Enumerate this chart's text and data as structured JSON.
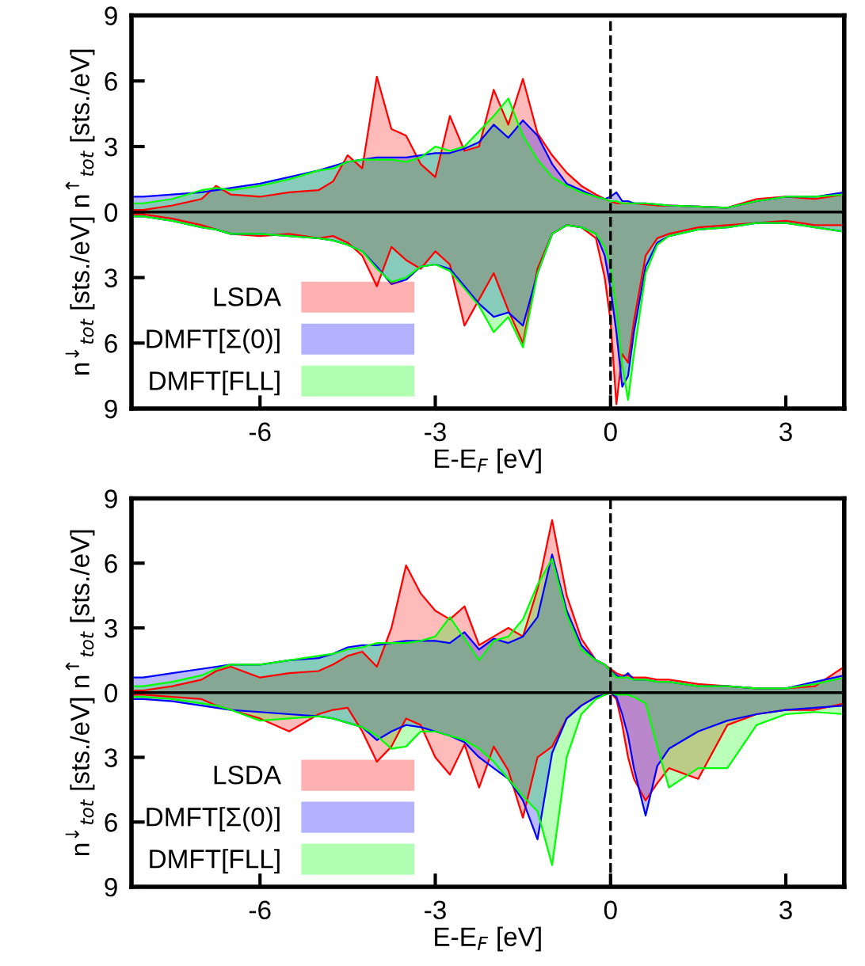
{
  "chart_data": [
    {
      "type": "area",
      "xlabel": "E-E$_{F}$ [eV]",
      "ylabel": "n$^{↓}$$_{tot}$ [sts./eV] n$^{↑}$$_{tot}$ [sts./eV]",
      "x": [
        -8.2,
        -8,
        -7.5,
        -7,
        -6.75,
        -6.5,
        -6,
        -5.5,
        -5,
        -4.75,
        -4.5,
        -4.25,
        -4,
        -3.75,
        -3.5,
        -3.25,
        -3,
        -2.75,
        -2.5,
        -2.25,
        -2,
        -1.75,
        -1.5,
        -1.25,
        -1,
        -0.75,
        -0.5,
        -0.25,
        -0.1,
        0,
        0.1,
        0.2,
        0.3,
        0.4,
        0.6,
        0.8,
        1,
        1.5,
        2,
        2.5,
        3,
        3.5,
        4
      ],
      "xlim": [
        -8.2,
        4
      ],
      "xticks": [
        -6,
        -3,
        0,
        3
      ],
      "ylim": [
        -9,
        9
      ],
      "yticks": [
        {
          "value": -9,
          "label": "9"
        },
        {
          "value": -6,
          "label": "6"
        },
        {
          "value": -3,
          "label": "3"
        },
        0,
        3,
        6,
        9
      ],
      "grid": false,
      "legend": "bottom left",
      "ref_lines": [
        {
          "axis": "y",
          "value": 0,
          "color": "#000000",
          "line_style": "solid"
        },
        {
          "axis": "x",
          "value": 0,
          "color": "#000000",
          "line_style": "dashed"
        }
      ],
      "series": [
        {
          "name": "LSDA",
          "color": "#ff0000",
          "values": [
            0.1,
            0.1,
            0.3,
            0.6,
            1.2,
            0.8,
            0.7,
            0.9,
            1.0,
            1.4,
            2.6,
            2.0,
            6.2,
            3.8,
            3.5,
            2.2,
            1.6,
            4.4,
            2.8,
            3.0,
            5.6,
            4.0,
            6.1,
            3.6,
            2.6,
            1.8,
            1.2,
            0.8,
            0.6,
            0.5,
            0.4,
            0.4,
            0.4,
            0.4,
            0.35,
            0.3,
            0.3,
            0.25,
            0.2,
            0.6,
            0.7,
            0.6,
            0.8
          ]
        },
        {
          "name": "DMFT[Σ(0)]",
          "color": "#0000ff",
          "values": [
            0.7,
            0.7,
            0.8,
            0.9,
            1.0,
            1.1,
            1.3,
            1.6,
            1.9,
            2.1,
            2.3,
            2.4,
            2.5,
            2.5,
            2.5,
            2.6,
            2.7,
            2.7,
            2.9,
            3.2,
            4.0,
            3.4,
            4.2,
            3.5,
            2.2,
            1.3,
            1.0,
            0.7,
            0.6,
            0.7,
            0.9,
            0.5,
            0.5,
            0.4,
            0.4,
            0.35,
            0.3,
            0.25,
            0.2,
            0.5,
            0.7,
            0.7,
            0.9
          ]
        },
        {
          "name": "DMFT[FLL]",
          "color": "#00ff00",
          "values": [
            0.4,
            0.4,
            0.6,
            1.0,
            1.1,
            1.0,
            1.2,
            1.5,
            1.9,
            2.0,
            2.3,
            2.4,
            2.4,
            2.4,
            2.3,
            2.5,
            3.0,
            2.8,
            3.0,
            3.7,
            4.4,
            5.2,
            3.5,
            2.4,
            1.6,
            1.2,
            0.9,
            0.7,
            0.6,
            0.5,
            0.5,
            0.4,
            0.4,
            0.4,
            0.4,
            0.35,
            0.3,
            0.25,
            0.2,
            0.5,
            0.7,
            0.7,
            0.8
          ]
        },
        {
          "color": "#ff0000",
          "values": [
            -0.1,
            -0.1,
            -0.3,
            -0.6,
            -0.8,
            -1.0,
            -1.1,
            -1.0,
            -1.2,
            -1.1,
            -1.4,
            -2.0,
            -3.4,
            -1.6,
            -2.2,
            -2.6,
            -1.8,
            -2.4,
            -5.2,
            -4.0,
            -2.8,
            -4.5,
            -6.0,
            -2.6,
            -1.0,
            -0.6,
            -0.7,
            -1.2,
            -3.0,
            -5.0,
            -8.8,
            -6.5,
            -6.9,
            -5.0,
            -2.0,
            -1.2,
            -1.0,
            -0.7,
            -0.6,
            -0.5,
            -0.4,
            -0.6,
            -0.6
          ]
        },
        {
          "color": "#0000ff",
          "values": [
            -0.2,
            -0.2,
            -0.4,
            -0.7,
            -0.8,
            -1.0,
            -1.0,
            -1.1,
            -1.2,
            -1.3,
            -1.5,
            -1.8,
            -2.5,
            -3.3,
            -3.1,
            -2.5,
            -2.4,
            -2.6,
            -3.4,
            -4.2,
            -4.8,
            -4.6,
            -5.2,
            -2.8,
            -1.0,
            -0.6,
            -0.7,
            -1.0,
            -2.0,
            -3.5,
            -5.5,
            -8.0,
            -7.5,
            -5.5,
            -2.5,
            -1.4,
            -1.1,
            -0.8,
            -0.7,
            -0.5,
            -0.5,
            -0.7,
            -0.9
          ]
        },
        {
          "color": "#00ff00",
          "values": [
            -0.2,
            -0.2,
            -0.4,
            -0.7,
            -0.8,
            -1.0,
            -1.0,
            -1.1,
            -1.2,
            -1.3,
            -1.5,
            -1.8,
            -2.6,
            -3.2,
            -3.0,
            -2.5,
            -2.4,
            -2.7,
            -3.5,
            -4.3,
            -5.5,
            -4.8,
            -6.2,
            -2.8,
            -1.0,
            -0.6,
            -0.7,
            -1.0,
            -1.6,
            -2.5,
            -4.5,
            -7.0,
            -8.6,
            -6.5,
            -2.8,
            -1.5,
            -1.1,
            -0.8,
            -0.7,
            -0.5,
            -0.5,
            -0.7,
            -0.9
          ]
        }
      ]
    },
    {
      "type": "area",
      "xlabel": "E-E$_{F}$ [eV]",
      "ylabel": "n$^{↓}$$_{tot}$ [sts./eV] n$^{↑}$$_{tot}$ [sts./eV]",
      "x": [
        -8.2,
        -8,
        -7.5,
        -7,
        -6.75,
        -6.5,
        -6,
        -5.5,
        -5,
        -4.75,
        -4.5,
        -4.25,
        -4,
        -3.75,
        -3.5,
        -3.25,
        -3,
        -2.75,
        -2.5,
        -2.25,
        -2,
        -1.75,
        -1.5,
        -1.25,
        -1,
        -0.75,
        -0.5,
        -0.25,
        -0.1,
        0,
        0.1,
        0.2,
        0.3,
        0.4,
        0.6,
        0.8,
        1,
        1.5,
        2,
        2.5,
        3,
        3.5,
        4
      ],
      "xlim": [
        -8.2,
        4
      ],
      "xticks": [
        -6,
        -3,
        0,
        3
      ],
      "ylim": [
        -9,
        9
      ],
      "yticks": [
        {
          "value": -9,
          "label": "9"
        },
        {
          "value": -6,
          "label": "6"
        },
        {
          "value": -3,
          "label": "3"
        },
        0,
        3,
        6,
        9
      ],
      "grid": false,
      "legend": "bottom left",
      "ref_lines": [
        {
          "axis": "y",
          "value": 0,
          "color": "#000000",
          "line_style": "solid"
        },
        {
          "axis": "x",
          "value": 0,
          "color": "#000000",
          "line_style": "dashed"
        }
      ],
      "series": [
        {
          "name": "LSDA",
          "color": "#ff0000",
          "values": [
            0.1,
            0.1,
            0.3,
            0.6,
            1.0,
            1.2,
            0.7,
            0.9,
            1.0,
            1.3,
            1.7,
            1.9,
            1.2,
            3.0,
            5.9,
            4.6,
            3.8,
            3.4,
            4.0,
            2.2,
            2.6,
            3.0,
            2.6,
            4.8,
            8.0,
            4.5,
            2.5,
            1.5,
            1.3,
            1.1,
            0.9,
            0.8,
            0.8,
            0.7,
            0.7,
            0.6,
            0.6,
            0.4,
            0.3,
            0.2,
            0.2,
            0.3,
            1.2
          ]
        },
        {
          "name": "DMFT[Σ(0)]",
          "color": "#0000ff",
          "values": [
            0.7,
            0.7,
            0.9,
            1.1,
            1.2,
            1.3,
            1.3,
            1.5,
            1.6,
            1.8,
            2.1,
            2.2,
            2.2,
            2.3,
            2.4,
            2.4,
            2.4,
            2.3,
            2.8,
            2.0,
            2.5,
            2.3,
            2.6,
            3.5,
            6.4,
            3.8,
            2.2,
            1.5,
            1.3,
            1.0,
            0.8,
            0.7,
            0.9,
            0.6,
            0.6,
            0.5,
            0.5,
            0.3,
            0.3,
            0.2,
            0.2,
            0.5,
            0.8
          ]
        },
        {
          "name": "DMFT[FLL]",
          "color": "#00ff00",
          "values": [
            0.3,
            0.3,
            0.5,
            0.8,
            1.1,
            1.3,
            1.3,
            1.5,
            1.7,
            1.8,
            2.0,
            2.1,
            2.3,
            2.3,
            2.3,
            2.4,
            2.6,
            3.5,
            2.5,
            1.5,
            2.4,
            2.6,
            3.4,
            5.0,
            6.2,
            3.6,
            2.0,
            1.5,
            1.3,
            1.0,
            0.7,
            0.7,
            0.7,
            0.6,
            0.6,
            0.5,
            0.5,
            0.3,
            0.3,
            0.2,
            0.2,
            0.4,
            0.7
          ]
        },
        {
          "color": "#ff0000",
          "values": [
            -0.1,
            -0.1,
            -0.2,
            -0.3,
            -0.6,
            -0.8,
            -1.2,
            -1.8,
            -1.0,
            -0.8,
            -0.7,
            -1.8,
            -3.2,
            -2.5,
            -1.2,
            -1.5,
            -3.0,
            -3.8,
            -2.4,
            -4.4,
            -2.5,
            -3.6,
            -5.8,
            -3.0,
            -2.5,
            -1.2,
            -0.6,
            -0.2,
            -0.1,
            0,
            -0.3,
            -1.5,
            -3.0,
            -4.0,
            -5.0,
            -4.2,
            -3.5,
            -4.0,
            -1.5,
            -1.0,
            -0.8,
            -0.8,
            -0.5
          ]
        },
        {
          "color": "#0000ff",
          "values": [
            -0.3,
            -0.3,
            -0.4,
            -0.6,
            -0.7,
            -0.8,
            -0.9,
            -1.0,
            -1.1,
            -1.2,
            -1.4,
            -1.6,
            -2.2,
            -1.8,
            -1.5,
            -1.6,
            -1.8,
            -2.0,
            -2.3,
            -3.0,
            -3.5,
            -4.0,
            -5.0,
            -6.8,
            -2.8,
            -1.2,
            -0.6,
            -0.2,
            -0.1,
            0,
            -0.2,
            -1.0,
            -2.0,
            -3.5,
            -5.7,
            -3.4,
            -2.6,
            -1.8,
            -1.3,
            -1.0,
            -0.8,
            -0.7,
            -0.6
          ]
        },
        {
          "color": "#00ff00",
          "values": [
            -0.2,
            -0.2,
            -0.3,
            -0.5,
            -0.6,
            -0.8,
            -1.3,
            -1.2,
            -1.1,
            -1.2,
            -1.4,
            -1.6,
            -2.0,
            -2.6,
            -2.5,
            -1.8,
            -1.8,
            -2.0,
            -2.2,
            -2.6,
            -3.2,
            -4.0,
            -4.8,
            -5.5,
            -8.0,
            -3.0,
            -1.0,
            -0.3,
            -0.1,
            0,
            -0.1,
            -0.1,
            -0.1,
            -0.2,
            -0.5,
            -2.5,
            -4.4,
            -3.5,
            -3.5,
            -1.5,
            -1.0,
            -0.9,
            -1.0
          ]
        }
      ]
    }
  ]
}
